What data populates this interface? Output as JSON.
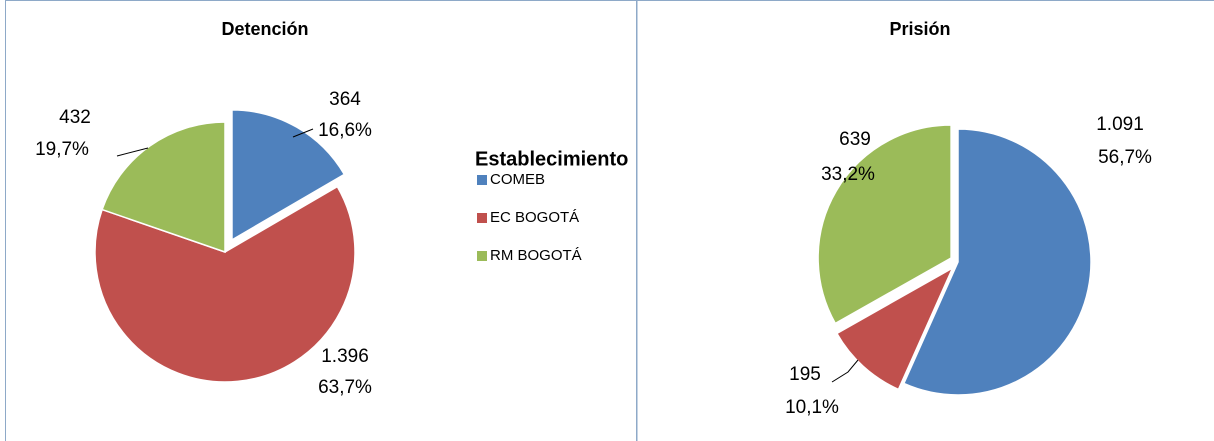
{
  "chart_data": [
    {
      "type": "pie",
      "title": "Detención",
      "categories": [
        "COMEB",
        "EC BOGOTÁ",
        "RM BOGOTÁ"
      ],
      "values": [
        364,
        1396,
        432
      ],
      "value_labels": [
        "364",
        "1.396",
        "432"
      ],
      "percentages": [
        16.6,
        63.7,
        19.7
      ],
      "percentage_labels": [
        "16,6%",
        "63,7%",
        "19,7%"
      ],
      "colors": [
        "#4f81bd",
        "#c0504d",
        "#9bbb59"
      ],
      "legend": true,
      "legend_title": "Establecimiento"
    },
    {
      "type": "pie",
      "title": "Prisión",
      "categories": [
        "COMEB",
        "EC BOGOTÁ",
        "RM BOGOTÁ"
      ],
      "values": [
        1091,
        195,
        639
      ],
      "value_labels": [
        "1.091",
        "195",
        "639"
      ],
      "percentages": [
        56.7,
        10.1,
        33.2
      ],
      "percentage_labels": [
        "56,7%",
        "10,1%",
        "33,2%"
      ],
      "colors": [
        "#4f81bd",
        "#c0504d",
        "#9bbb59"
      ],
      "legend": false
    }
  ]
}
